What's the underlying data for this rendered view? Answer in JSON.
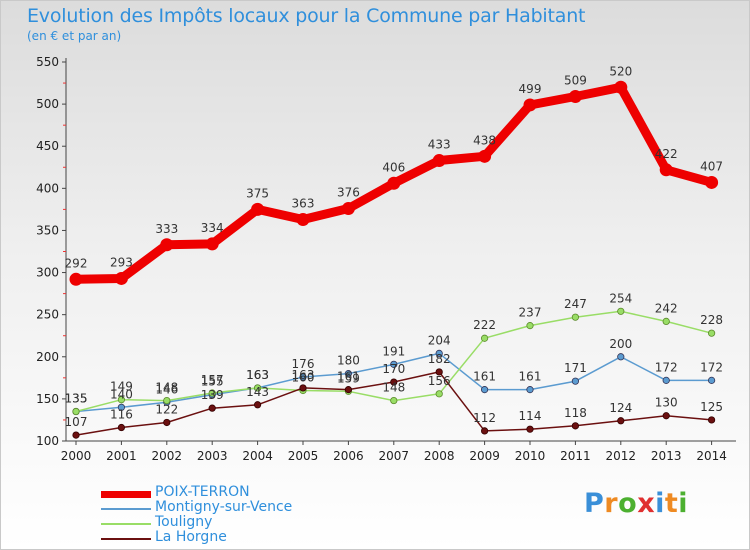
{
  "title": "Evolution des Impôts locaux pour la Commune par Habitant",
  "subtitle": "(en € et par an)",
  "logo": {
    "letters": [
      "P",
      "r",
      "o",
      "x",
      "i",
      "t",
      "i"
    ],
    "colors": [
      "#3a8fd8",
      "#ee8a22",
      "#4cb030",
      "#e03030",
      "#3a8fd8",
      "#ee8a22",
      "#4cb030"
    ]
  },
  "chart_data": {
    "type": "line",
    "title": "Evolution des Impôts locaux pour la Commune par Habitant",
    "subtitle": "(en € et par an)",
    "xlabel": "",
    "ylabel": "",
    "ylim": [
      100,
      550
    ],
    "yticks": [
      100,
      150,
      200,
      250,
      300,
      350,
      400,
      450,
      500,
      550
    ],
    "grid": false,
    "legend_position": "bottom-left",
    "categories": [
      "2000",
      "2001",
      "2002",
      "2003",
      "2004",
      "2005",
      "2006",
      "2007",
      "2008",
      "2009",
      "2010",
      "2011",
      "2012",
      "2013",
      "2014"
    ],
    "series": [
      {
        "name": "POIX-TERRON",
        "color": "#ee0000",
        "values": [
          292,
          293,
          333,
          334,
          375,
          363,
          376,
          406,
          433,
          438,
          499,
          509,
          520,
          422,
          407
        ]
      },
      {
        "name": "Montigny-sur-Vence",
        "color": "#5b9bd0",
        "values": [
          135,
          140,
          146,
          155,
          163,
          176,
          180,
          191,
          204,
          161,
          161,
          171,
          200,
          172,
          172
        ]
      },
      {
        "name": "Touligny",
        "color": "#99dd66",
        "values": [
          135,
          149,
          148,
          157,
          163,
          160,
          159,
          148,
          156,
          222,
          237,
          247,
          254,
          242,
          228
        ]
      },
      {
        "name": "La Horgne",
        "color": "#6b1010",
        "values": [
          107,
          116,
          122,
          139,
          143,
          163,
          161,
          170,
          182,
          112,
          114,
          118,
          124,
          130,
          125
        ]
      }
    ]
  }
}
